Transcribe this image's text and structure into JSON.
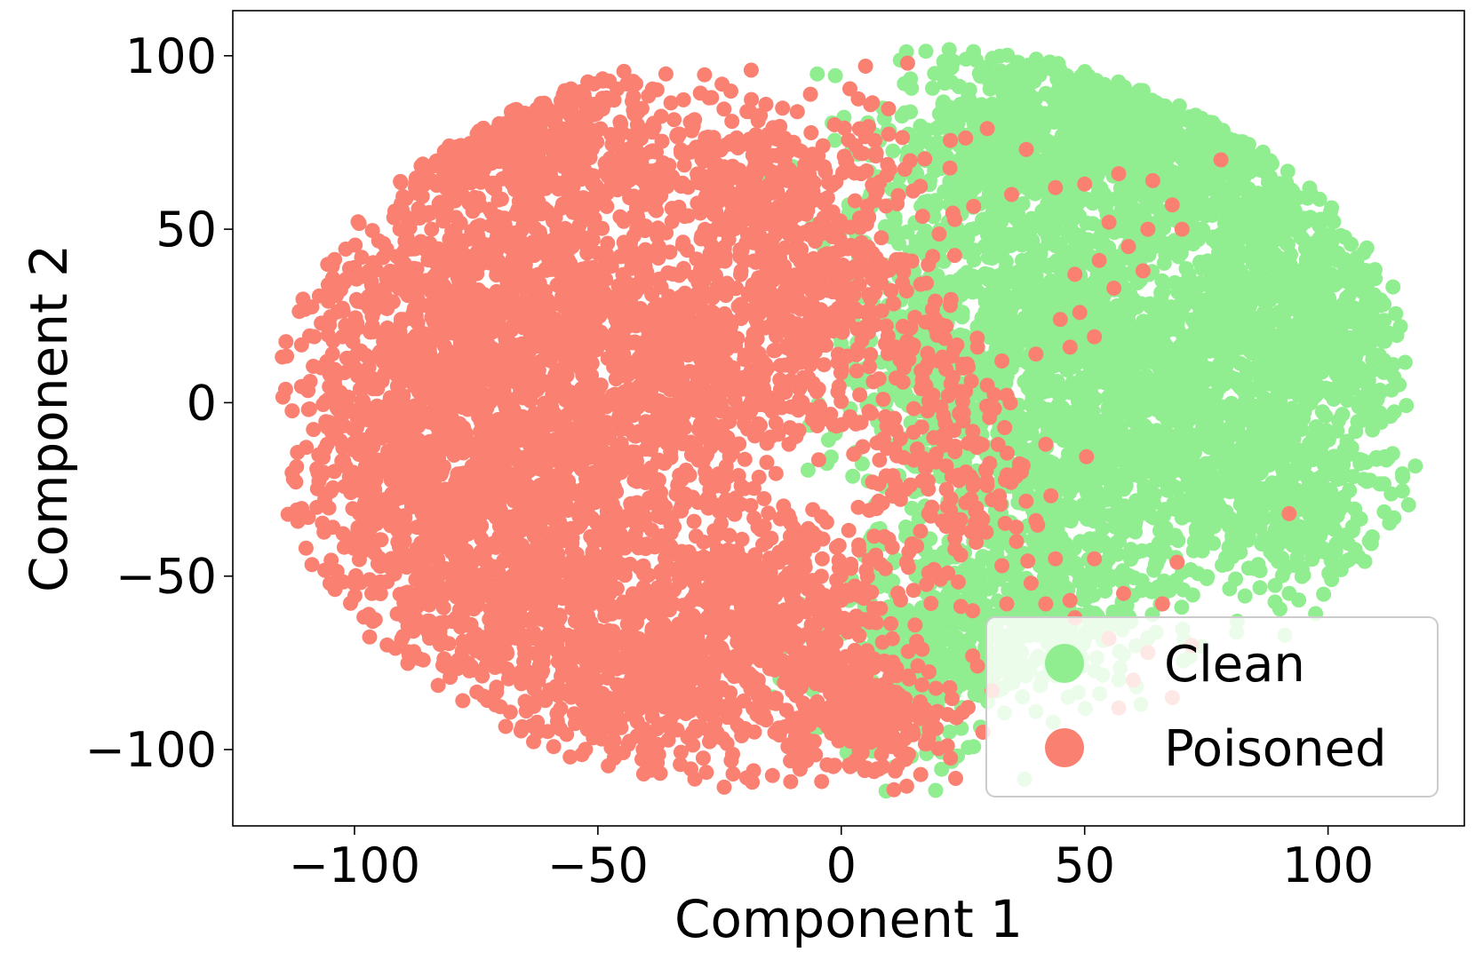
{
  "chart_data": {
    "type": "scatter",
    "title": "",
    "xlabel": "Component 1",
    "ylabel": "Component 2",
    "xlim": [
      -125,
      128
    ],
    "ylim": [
      -122,
      113
    ],
    "x_ticks": [
      -100,
      -50,
      0,
      50,
      100
    ],
    "y_ticks": [
      -100,
      -50,
      0,
      50,
      100
    ],
    "x_tick_labels": [
      "−100",
      "−50",
      "0",
      "50",
      "100"
    ],
    "y_tick_labels": [
      "−100",
      "−50",
      "0",
      "50",
      "100"
    ],
    "grid": false,
    "legend_position": "lower-right",
    "series": [
      {
        "name": "Clean",
        "color": "#90EE90",
        "regions": [
          {
            "cx": 35,
            "cy": 70,
            "rx": 28,
            "ry": 32,
            "weight": 0.13
          },
          {
            "cx": 62,
            "cy": 78,
            "rx": 30,
            "ry": 25,
            "weight": 0.12
          },
          {
            "cx": 85,
            "cy": 45,
            "rx": 20,
            "ry": 25,
            "weight": 0.07
          },
          {
            "cx": 100,
            "cy": 20,
            "rx": 17,
            "ry": 28,
            "weight": 0.07
          },
          {
            "cx": 75,
            "cy": 10,
            "rx": 25,
            "ry": 22,
            "weight": 0.08
          },
          {
            "cx": 45,
            "cy": 25,
            "rx": 26,
            "ry": 28,
            "weight": 0.1
          },
          {
            "cx": 55,
            "cy": -20,
            "rx": 30,
            "ry": 28,
            "weight": 0.12
          },
          {
            "cx": 90,
            "cy": -25,
            "rx": 22,
            "ry": 25,
            "weight": 0.09
          },
          {
            "cx": 20,
            "cy": 10,
            "rx": 18,
            "ry": 35,
            "weight": 0.08
          },
          {
            "cx": 40,
            "cy": -60,
            "rx": 28,
            "ry": 22,
            "weight": 0.07
          },
          {
            "cx": 15,
            "cy": -75,
            "rx": 22,
            "ry": 25,
            "weight": 0.07
          }
        ]
      },
      {
        "name": "Poisoned",
        "color": "#FA8072",
        "regions": [
          {
            "cx": -65,
            "cy": 75,
            "rx": 30,
            "ry": 20,
            "weight": 0.07
          },
          {
            "cx": -15,
            "cy": 65,
            "rx": 30,
            "ry": 22,
            "weight": 0.06
          },
          {
            "cx": -85,
            "cy": 20,
            "rx": 28,
            "ry": 40,
            "weight": 0.1
          },
          {
            "cx": -60,
            "cy": 30,
            "rx": 30,
            "ry": 40,
            "weight": 0.12
          },
          {
            "cx": -90,
            "cy": -20,
            "rx": 25,
            "ry": 30,
            "weight": 0.07
          },
          {
            "cx": -55,
            "cy": -25,
            "rx": 30,
            "ry": 35,
            "weight": 0.12
          },
          {
            "cx": -70,
            "cy": -60,
            "rx": 28,
            "ry": 25,
            "weight": 0.08
          },
          {
            "cx": -40,
            "cy": -80,
            "rx": 28,
            "ry": 25,
            "weight": 0.08
          },
          {
            "cx": -15,
            "cy": -60,
            "rx": 22,
            "ry": 30,
            "weight": 0.08
          },
          {
            "cx": -25,
            "cy": 10,
            "rx": 25,
            "ry": 25,
            "weight": 0.08
          },
          {
            "cx": 5,
            "cy": -90,
            "rx": 15,
            "ry": 18,
            "weight": 0.05
          },
          {
            "cx": -10,
            "cy": 35,
            "rx": 20,
            "ry": 20,
            "weight": 0.05
          },
          {
            "cx": 20,
            "cy": -20,
            "rx": 18,
            "ry": 30,
            "weight": 0.03
          },
          {
            "cx": 15,
            "cy": 20,
            "rx": 12,
            "ry": 20,
            "weight": 0.01
          }
        ]
      }
    ],
    "sparse_points": {
      "series": "Poisoned",
      "points": [
        [
          30,
          79
        ],
        [
          38,
          73
        ],
        [
          44,
          62
        ],
        [
          35,
          60
        ],
        [
          50,
          63
        ],
        [
          57,
          66
        ],
        [
          64,
          64
        ],
        [
          68,
          57
        ],
        [
          70,
          50
        ],
        [
          63,
          50
        ],
        [
          55,
          52
        ],
        [
          59,
          45
        ],
        [
          53,
          41
        ],
        [
          48,
          37
        ],
        [
          62,
          38
        ],
        [
          56,
          33
        ],
        [
          49,
          26
        ],
        [
          45,
          24
        ],
        [
          52,
          19
        ],
        [
          47,
          16
        ],
        [
          40,
          14
        ],
        [
          33,
          12
        ],
        [
          28,
          16
        ],
        [
          25,
          10
        ],
        [
          30,
          5
        ],
        [
          22,
          2
        ],
        [
          42,
          -12
        ],
        [
          37,
          -20
        ],
        [
          31,
          -28
        ],
        [
          40,
          -34
        ],
        [
          36,
          -40
        ],
        [
          44,
          -45
        ],
        [
          33,
          -47
        ],
        [
          39,
          -52
        ],
        [
          34,
          -58
        ],
        [
          42,
          -58
        ],
        [
          27,
          -60
        ],
        [
          47,
          -57
        ],
        [
          52,
          -45
        ],
        [
          58,
          -55
        ],
        [
          48,
          -62
        ],
        [
          55,
          -68
        ],
        [
          63,
          -72
        ],
        [
          60,
          -80
        ],
        [
          68,
          -85
        ],
        [
          57,
          -88
        ],
        [
          78,
          70
        ],
        [
          92,
          -32
        ],
        [
          69,
          -46
        ],
        [
          66,
          -58
        ],
        [
          27,
          -73
        ],
        [
          72,
          -70
        ],
        [
          31,
          -83
        ]
      ]
    }
  }
}
